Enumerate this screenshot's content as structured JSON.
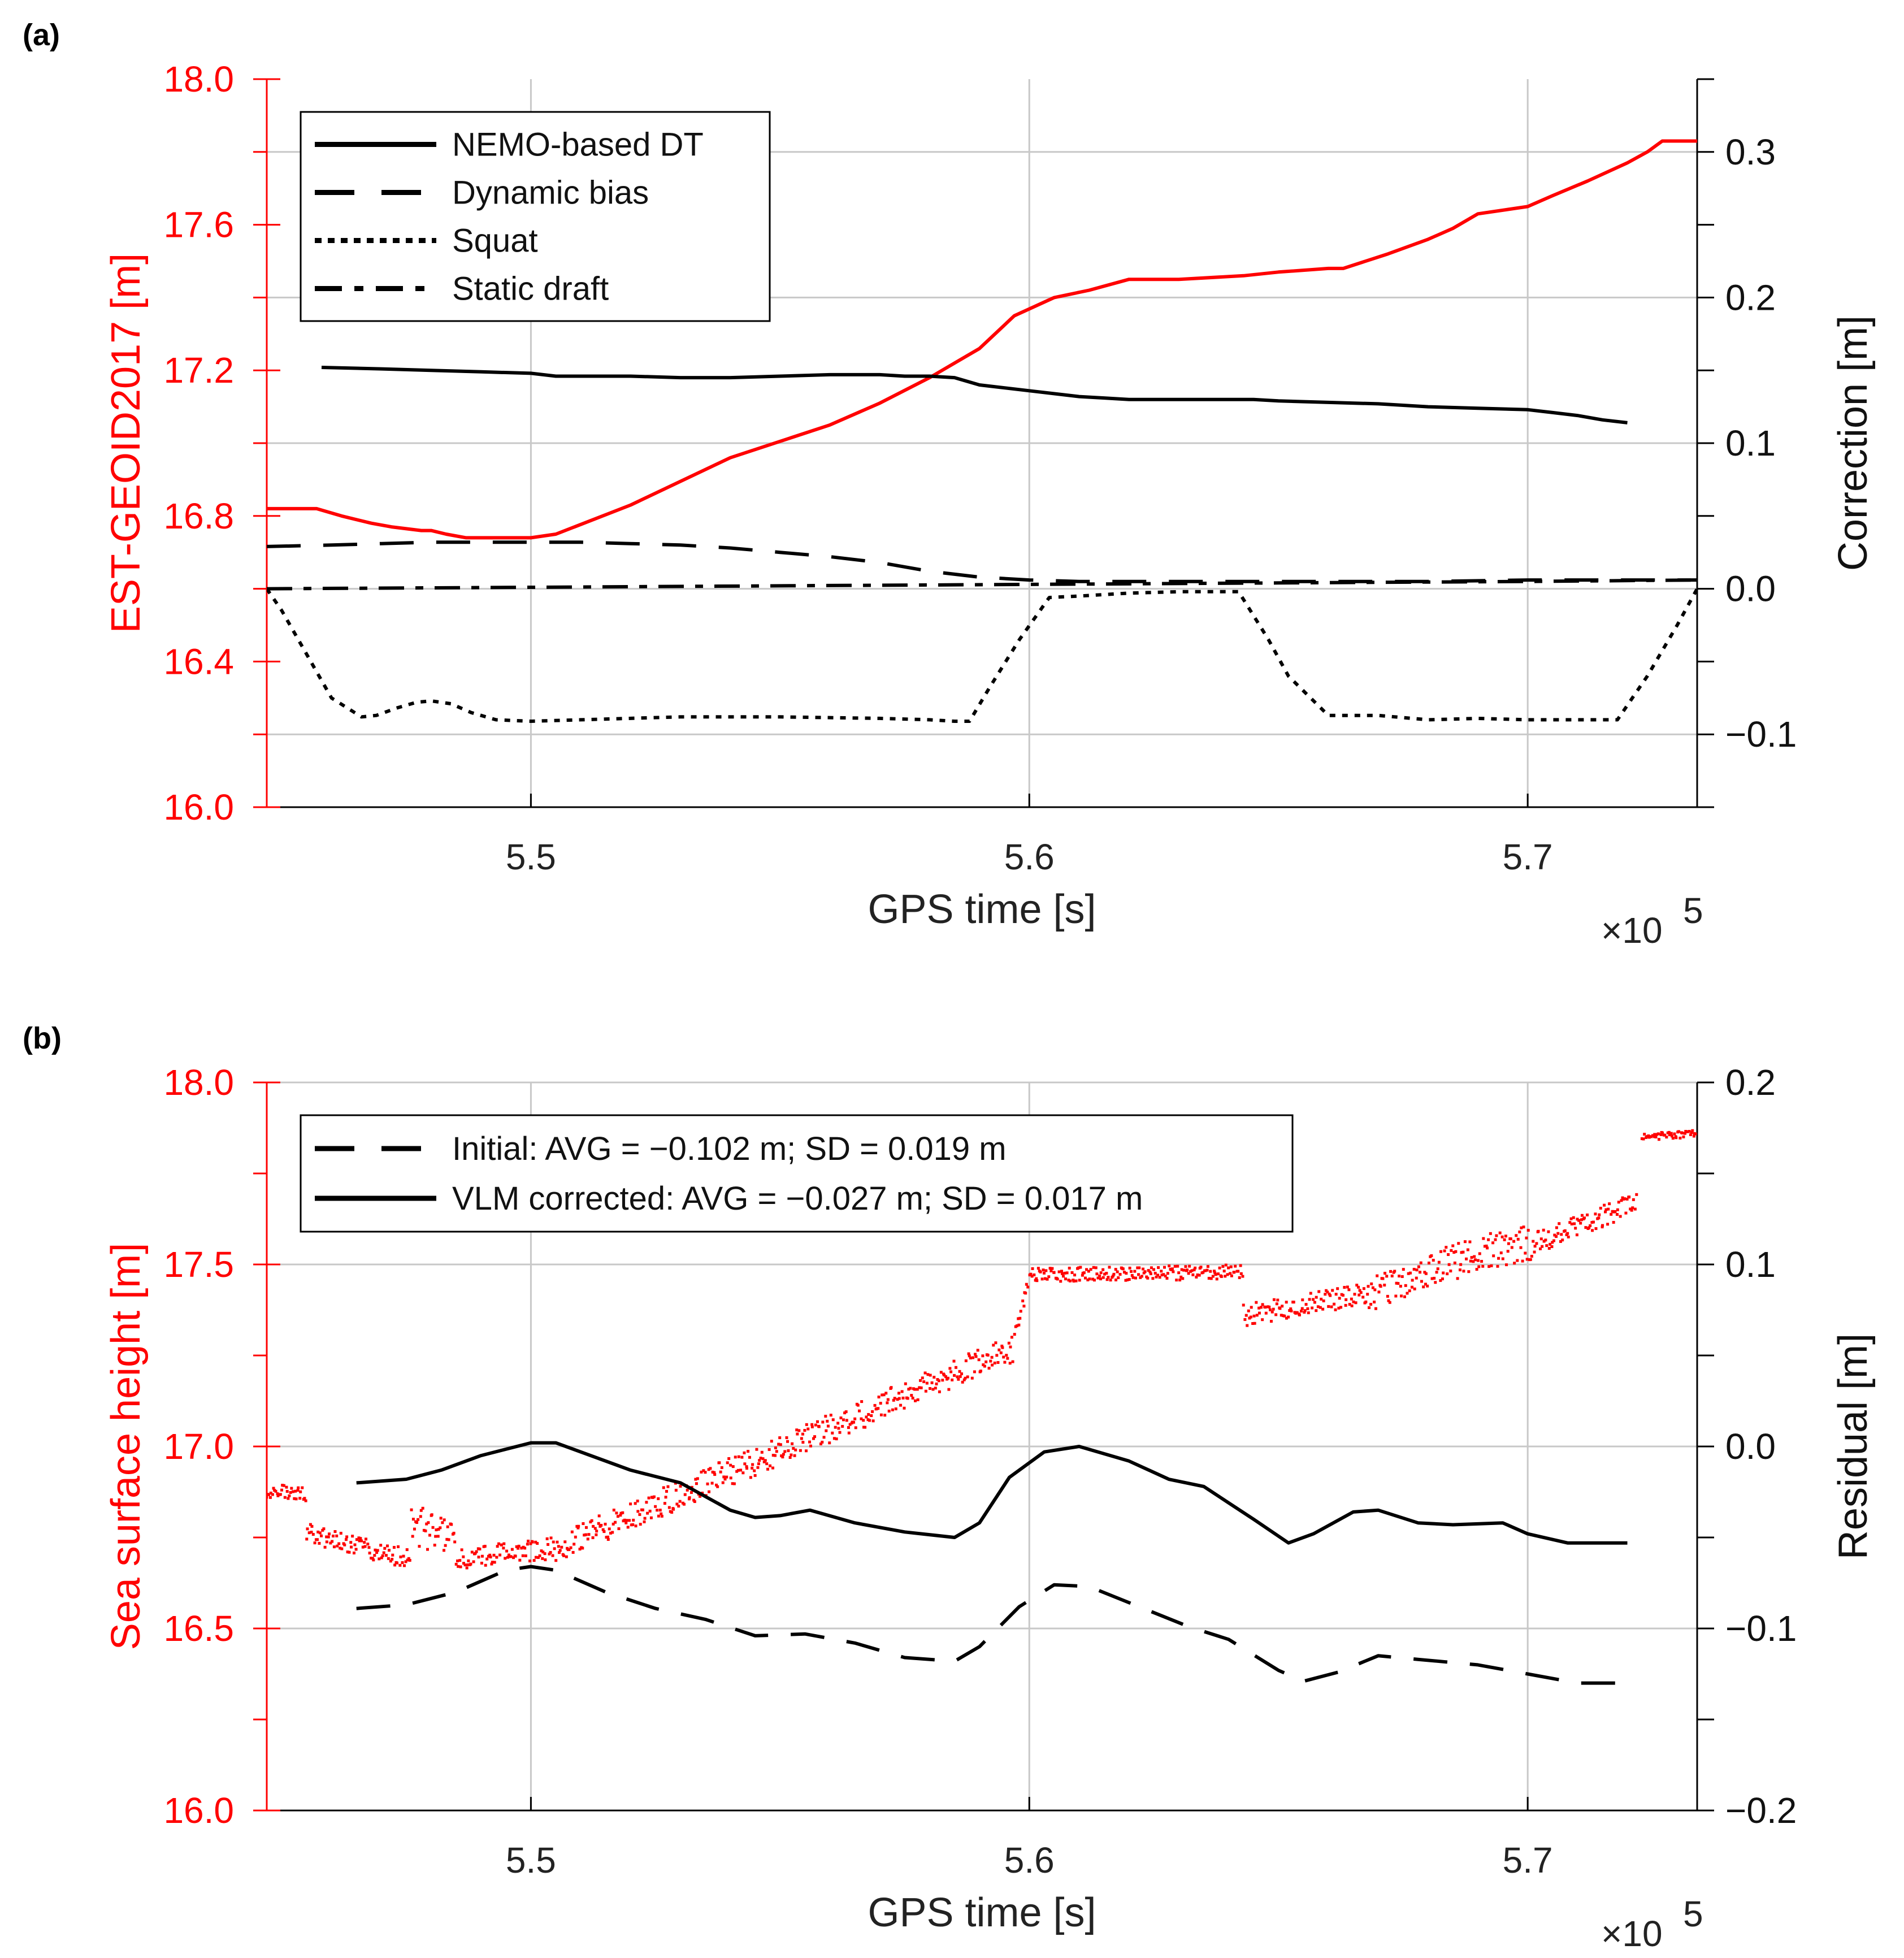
{
  "chart_data": [
    {
      "panel": "(a)",
      "type": "line",
      "colors": {
        "left_axis": "#ff0000",
        "right_axis": "#000000",
        "grid": "#c8c8c8"
      },
      "xlabel": "GPS time [s]",
      "x_exponent": "×10",
      "x_exponent_power": "5",
      "xlim": [
        5.447,
        5.734
      ],
      "xticks": [
        5.5,
        5.6,
        5.7
      ],
      "xtick_labels": [
        "5.5",
        "5.6",
        "5.7"
      ],
      "left_axis": {
        "label": "EST-GEOID2017 [m]",
        "ylim": [
          16.0,
          18.0
        ],
        "ticks": [
          16.0,
          16.4,
          16.8,
          17.2,
          17.6,
          18.0
        ],
        "tick_labels": [
          "16.0",
          "16.4",
          "16.8",
          "17.2",
          "17.6",
          "18.0"
        ]
      },
      "right_axis": {
        "label": "Correction [m]",
        "ylim": [
          -0.15,
          0.35
        ],
        "ticks": [
          -0.1,
          0.0,
          0.1,
          0.2,
          0.3
        ],
        "tick_labels": [
          "−0.1",
          "0.0",
          "0.1",
          "0.2",
          "0.3"
        ]
      },
      "series": [
        {
          "name": "EST-GEOID2017",
          "axis": "left",
          "color": "#ff0000",
          "style": "solid",
          "x": [
            5.447,
            5.457,
            5.462,
            5.468,
            5.472,
            5.478,
            5.48,
            5.483,
            5.487,
            5.494,
            5.5,
            5.505,
            5.52,
            5.54,
            5.56,
            5.57,
            5.58,
            5.59,
            5.597,
            5.605,
            5.612,
            5.62,
            5.625,
            5.63,
            5.643,
            5.65,
            5.66,
            5.663,
            5.672,
            5.68,
            5.685,
            5.69,
            5.7,
            5.705,
            5.712,
            5.72,
            5.724,
            5.727,
            5.734
          ],
          "y": [
            16.82,
            16.82,
            16.8,
            16.78,
            16.77,
            16.76,
            16.76,
            16.75,
            16.74,
            16.74,
            16.74,
            16.75,
            16.83,
            16.96,
            17.05,
            17.11,
            17.18,
            17.26,
            17.35,
            17.4,
            17.42,
            17.45,
            17.45,
            17.45,
            17.46,
            17.47,
            17.48,
            17.48,
            17.52,
            17.56,
            17.59,
            17.63,
            17.65,
            17.68,
            17.72,
            17.77,
            17.8,
            17.83,
            17.83
          ]
        },
        {
          "name": "NEMO-based DT",
          "axis": "right",
          "color": "#000000",
          "style": "solid",
          "x": [
            5.458,
            5.47,
            5.48,
            5.49,
            5.5,
            5.505,
            5.51,
            5.52,
            5.53,
            5.54,
            5.55,
            5.56,
            5.565,
            5.57,
            5.575,
            5.58,
            5.585,
            5.59,
            5.6,
            5.61,
            5.615,
            5.62,
            5.63,
            5.64,
            5.645,
            5.65,
            5.66,
            5.67,
            5.675,
            5.68,
            5.69,
            5.7,
            5.705,
            5.71,
            5.715,
            5.72
          ],
          "y": [
            0.152,
            0.151,
            0.15,
            0.149,
            0.148,
            0.146,
            0.146,
            0.146,
            0.145,
            0.145,
            0.146,
            0.147,
            0.147,
            0.147,
            0.146,
            0.146,
            0.145,
            0.14,
            0.136,
            0.132,
            0.131,
            0.13,
            0.13,
            0.13,
            0.13,
            0.129,
            0.128,
            0.127,
            0.126,
            0.125,
            0.124,
            0.123,
            0.121,
            0.119,
            0.116,
            0.114
          ]
        },
        {
          "name": "Dynamic bias",
          "axis": "right",
          "color": "#000000",
          "style": "dashed",
          "x": [
            5.447,
            5.46,
            5.47,
            5.48,
            5.49,
            5.5,
            5.51,
            5.52,
            5.53,
            5.54,
            5.55,
            5.56,
            5.57,
            5.58,
            5.59,
            5.6,
            5.61,
            5.62,
            5.64,
            5.66,
            5.68,
            5.7,
            5.72,
            5.734
          ],
          "y": [
            0.029,
            0.03,
            0.031,
            0.032,
            0.032,
            0.032,
            0.032,
            0.031,
            0.03,
            0.028,
            0.025,
            0.022,
            0.018,
            0.012,
            0.008,
            0.006,
            0.005,
            0.005,
            0.005,
            0.005,
            0.005,
            0.006,
            0.006,
            0.006
          ]
        },
        {
          "name": "Squat",
          "axis": "right",
          "color": "#000000",
          "style": "dotted",
          "x": [
            5.447,
            5.45,
            5.455,
            5.46,
            5.466,
            5.469,
            5.473,
            5.477,
            5.48,
            5.484,
            5.488,
            5.493,
            5.5,
            5.51,
            5.53,
            5.55,
            5.57,
            5.58,
            5.585,
            5.588,
            5.592,
            5.598,
            5.604,
            5.61,
            5.62,
            5.63,
            5.637,
            5.642,
            5.648,
            5.652,
            5.66,
            5.67,
            5.68,
            5.69,
            5.7,
            5.71,
            5.715,
            5.718,
            5.724,
            5.73,
            5.734
          ],
          "y": [
            0.0,
            -0.015,
            -0.045,
            -0.075,
            -0.088,
            -0.087,
            -0.082,
            -0.078,
            -0.077,
            -0.079,
            -0.085,
            -0.09,
            -0.091,
            -0.09,
            -0.088,
            -0.088,
            -0.089,
            -0.09,
            -0.091,
            -0.091,
            -0.068,
            -0.035,
            -0.006,
            -0.005,
            -0.003,
            -0.002,
            -0.002,
            -0.002,
            -0.035,
            -0.06,
            -0.087,
            -0.087,
            -0.09,
            -0.089,
            -0.09,
            -0.09,
            -0.09,
            -0.09,
            -0.06,
            -0.025,
            0.0
          ]
        },
        {
          "name": "Static draft",
          "axis": "right",
          "color": "#000000",
          "style": "dashdot",
          "x": [
            5.447,
            5.5,
            5.55,
            5.6,
            5.65,
            5.7,
            5.734
          ],
          "y": [
            0.0,
            0.001,
            0.002,
            0.003,
            0.004,
            0.005,
            0.006
          ]
        }
      ],
      "legend": [
        {
          "label": "NEMO-based DT",
          "style": "solid"
        },
        {
          "label": "Dynamic bias",
          "style": "dashed"
        },
        {
          "label": "Squat",
          "style": "dotted"
        },
        {
          "label": "Static draft",
          "style": "dashdot"
        }
      ],
      "legend_position": "top-left"
    },
    {
      "panel": "(b)",
      "type": "scatter",
      "colors": {
        "left_axis": "#ff0000",
        "right_axis": "#000000",
        "grid": "#c8c8c8"
      },
      "xlabel": "GPS time [s]",
      "x_exponent": "×10",
      "x_exponent_power": "5",
      "xlim": [
        5.447,
        5.734
      ],
      "xticks": [
        5.5,
        5.6,
        5.7
      ],
      "xtick_labels": [
        "5.5",
        "5.6",
        "5.7"
      ],
      "left_axis": {
        "label": "Sea surface height [m]",
        "ylim": [
          16.0,
          18.0
        ],
        "ticks": [
          16.0,
          16.5,
          17.0,
          17.5,
          18.0
        ],
        "tick_labels": [
          "16.0",
          "16.5",
          "17.0",
          "17.5",
          "18.0"
        ]
      },
      "right_axis": {
        "label": "Residual [m]",
        "ylim": [
          -0.2,
          0.2
        ],
        "ticks": [
          -0.2,
          -0.1,
          0.0,
          0.1,
          0.2
        ],
        "tick_labels": [
          "−0.2",
          "−0.1",
          "0.0",
          "0.1",
          "0.2"
        ]
      },
      "ssh_segments": [
        {
          "x0": 5.447,
          "x1": 5.455,
          "y0": 16.88,
          "y1": 16.87,
          "noise": 0.02
        },
        {
          "x0": 5.455,
          "x1": 5.476,
          "y0": 16.76,
          "y1": 16.69,
          "noise": 0.03
        },
        {
          "x0": 5.476,
          "x1": 5.485,
          "y0": 16.8,
          "y1": 16.72,
          "noise": 0.06
        },
        {
          "x0": 5.485,
          "x1": 5.505,
          "y0": 16.69,
          "y1": 16.72,
          "noise": 0.03
        },
        {
          "x0": 5.505,
          "x1": 5.597,
          "y0": 16.72,
          "y1": 17.27,
          "noise": 0.04
        },
        {
          "x0": 5.597,
          "x1": 5.6,
          "y0": 17.3,
          "y1": 17.45,
          "noise": 0.02
        },
        {
          "x0": 5.6,
          "x1": 5.643,
          "y0": 17.47,
          "y1": 17.48,
          "noise": 0.02
        },
        {
          "x0": 5.643,
          "x1": 5.668,
          "y0": 17.36,
          "y1": 17.42,
          "noise": 0.03
        },
        {
          "x0": 5.668,
          "x1": 5.69,
          "y0": 17.42,
          "y1": 17.53,
          "noise": 0.05
        },
        {
          "x0": 5.69,
          "x1": 5.702,
          "y0": 17.53,
          "y1": 17.56,
          "noise": 0.05
        },
        {
          "x0": 5.702,
          "x1": 5.722,
          "y0": 17.56,
          "y1": 17.67,
          "noise": 0.03
        },
        {
          "x0": 5.723,
          "x1": 5.734,
          "y0": 17.85,
          "y1": 17.86,
          "noise": 0.01
        }
      ],
      "series": [
        {
          "name": "Sea surface height",
          "axis": "left",
          "color": "#ff0000",
          "style": "points",
          "generated_from": "ssh_segments"
        },
        {
          "name": "VLM corrected",
          "axis": "right",
          "color": "#000000",
          "style": "solid",
          "x": [
            5.465,
            5.475,
            5.482,
            5.49,
            5.5,
            5.505,
            5.51,
            5.52,
            5.53,
            5.54,
            5.545,
            5.55,
            5.556,
            5.565,
            5.575,
            5.585,
            5.59,
            5.596,
            5.603,
            5.61,
            5.62,
            5.628,
            5.635,
            5.645,
            5.652,
            5.657,
            5.665,
            5.67,
            5.678,
            5.685,
            5.695,
            5.7,
            5.708,
            5.715,
            5.72
          ],
          "y": [
            -0.02,
            -0.018,
            -0.013,
            -0.005,
            0.002,
            0.002,
            -0.003,
            -0.013,
            -0.02,
            -0.035,
            -0.039,
            -0.038,
            -0.035,
            -0.042,
            -0.047,
            -0.05,
            -0.042,
            -0.017,
            -0.003,
            0.0,
            -0.008,
            -0.018,
            -0.022,
            -0.04,
            -0.053,
            -0.048,
            -0.036,
            -0.035,
            -0.042,
            -0.043,
            -0.042,
            -0.048,
            -0.053,
            -0.053,
            -0.053
          ]
        },
        {
          "name": "Initial",
          "axis": "right",
          "color": "#000000",
          "style": "dashed",
          "x": [
            5.465,
            5.475,
            5.485,
            5.495,
            5.5,
            5.505,
            5.515,
            5.525,
            5.535,
            5.545,
            5.555,
            5.565,
            5.575,
            5.585,
            5.59,
            5.598,
            5.605,
            5.612,
            5.622,
            5.632,
            5.64,
            5.65,
            5.655,
            5.662,
            5.67,
            5.678,
            5.69,
            5.7,
            5.71,
            5.72
          ],
          "y": [
            -0.089,
            -0.087,
            -0.08,
            -0.068,
            -0.066,
            -0.068,
            -0.08,
            -0.089,
            -0.095,
            -0.104,
            -0.103,
            -0.108,
            -0.116,
            -0.118,
            -0.11,
            -0.088,
            -0.076,
            -0.077,
            -0.088,
            -0.099,
            -0.106,
            -0.123,
            -0.129,
            -0.124,
            -0.115,
            -0.117,
            -0.12,
            -0.125,
            -0.13,
            -0.13
          ]
        }
      ],
      "legend": [
        {
          "label": "Initial: AVG = −0.102 m; SD = 0.019 m",
          "style": "dashed"
        },
        {
          "label": "VLM corrected: AVG = −0.027 m; SD = 0.017 m",
          "style": "solid"
        }
      ],
      "legend_position": "top-left"
    }
  ]
}
